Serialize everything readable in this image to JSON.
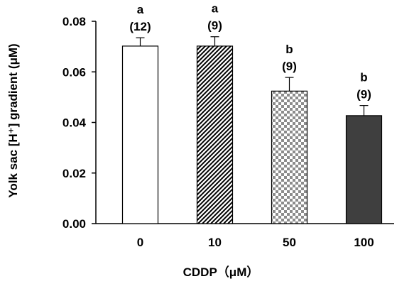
{
  "chart_data": {
    "type": "bar",
    "categories": [
      "0",
      "10",
      "50",
      "100"
    ],
    "values": [
      0.0702,
      0.0702,
      0.0524,
      0.0427
    ],
    "errors": [
      0.0033,
      0.0037,
      0.0054,
      0.004
    ],
    "significance_letters": [
      "a",
      "a",
      "b",
      "b"
    ],
    "sample_sizes": [
      "(12)",
      "(9)",
      "(9)",
      "(9)"
    ],
    "bar_fills": [
      "white",
      "diagonal-hatch",
      "checker",
      "solid-dark"
    ],
    "bar_colors": [
      "#ffffff",
      "#000000",
      "#9a9a9a",
      "#3f3f3f"
    ],
    "xlabel": "CDDP（μM）",
    "ylabel": "Yolk sac [H⁺] gradient (μM)",
    "ylim": [
      0,
      0.08
    ],
    "yticks": [
      "0.00",
      "0.02",
      "0.04",
      "0.06",
      "0.08"
    ],
    "grid": false,
    "legend": "none"
  }
}
